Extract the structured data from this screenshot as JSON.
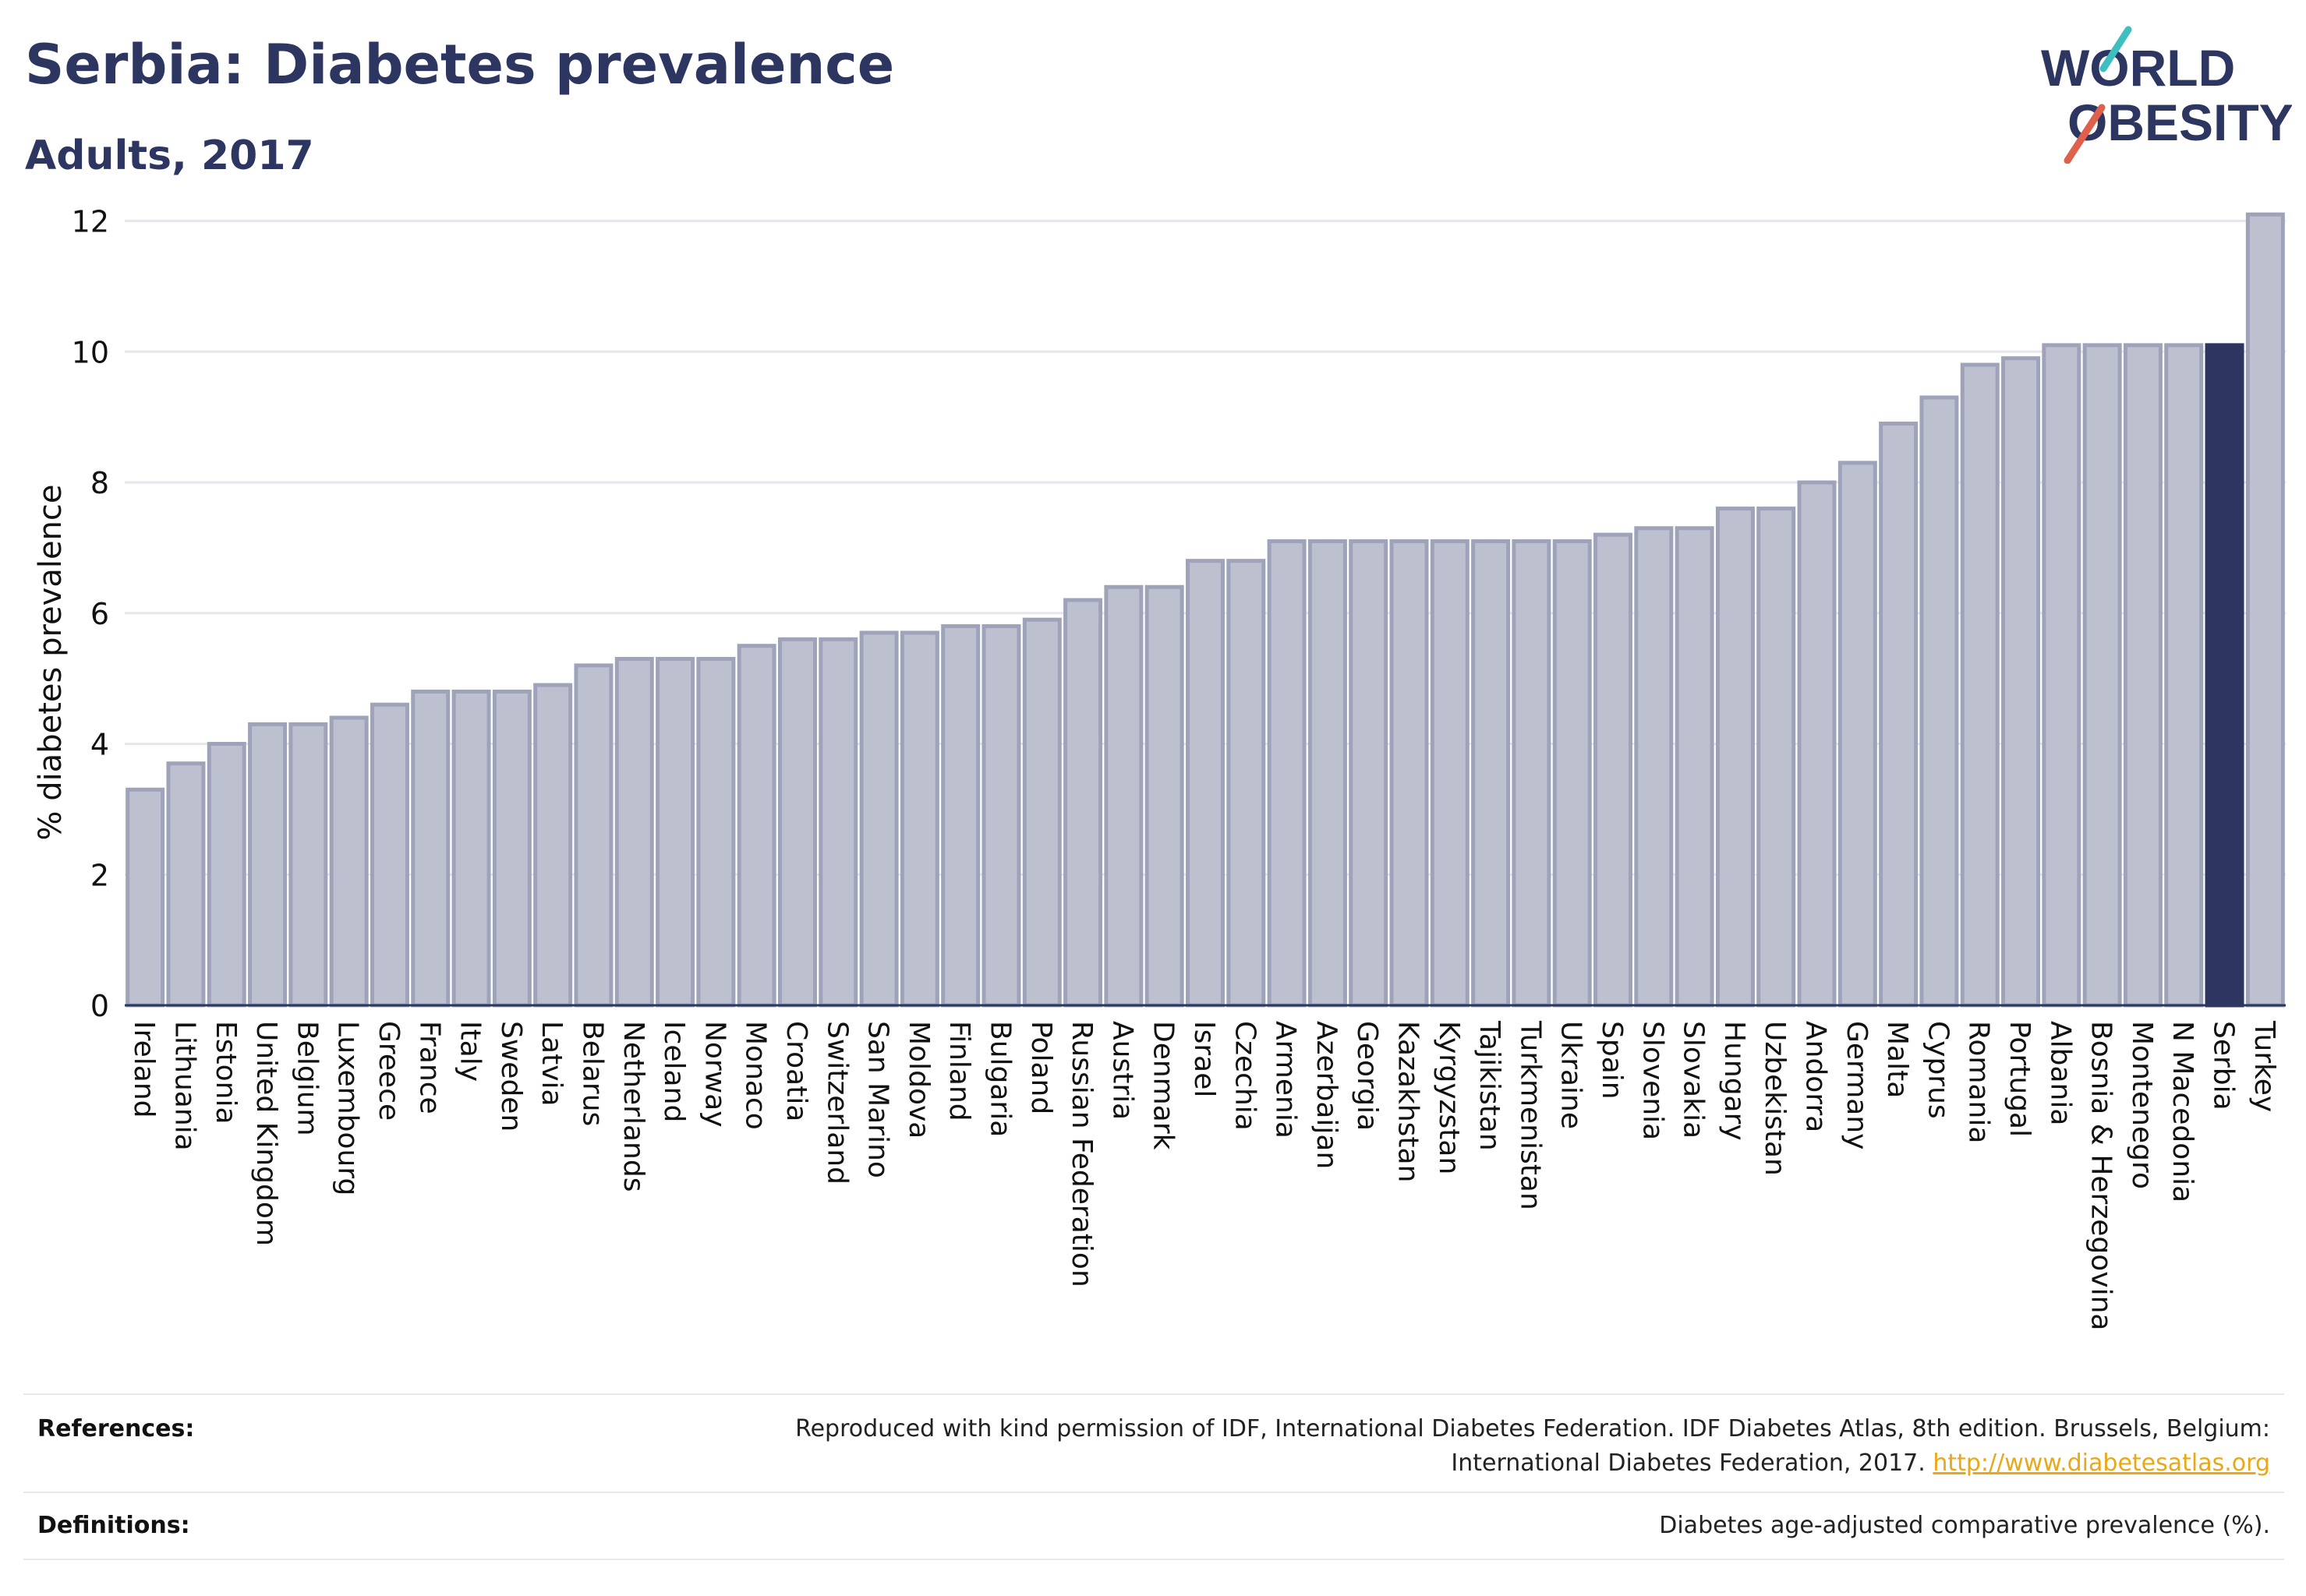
{
  "header": {
    "title": "Serbia: Diabetes prevalence",
    "subtitle": "Adults, 2017",
    "logo_line1": "WORLD",
    "logo_line2": "OBESITY"
  },
  "colors": {
    "title": "#2d3561",
    "bar": "#bcc0cf",
    "bar_border": "#9ea3ba",
    "highlight": "#2d3561",
    "grid": "#e6e6ec",
    "link": "#e8a818",
    "logo_teal": "#3dbfc0",
    "logo_coral": "#e0604e"
  },
  "chart_data": {
    "type": "bar",
    "ylabel": "% diabetes prevalence",
    "xlabel": "",
    "ylim": [
      0,
      12
    ],
    "yticks": [
      0,
      2,
      4,
      6,
      8,
      10,
      12
    ],
    "grid": true,
    "highlight": "Serbia",
    "categories": [
      "Ireland",
      "Lithuania",
      "Estonia",
      "United Kingdom",
      "Belgium",
      "Luxembourg",
      "Greece",
      "France",
      "Italy",
      "Sweden",
      "Latvia",
      "Belarus",
      "Netherlands",
      "Iceland",
      "Norway",
      "Monaco",
      "Croatia",
      "Switzerland",
      "San Marino",
      "Moldova",
      "Finland",
      "Bulgaria",
      "Poland",
      "Russian Federation",
      "Austria",
      "Denmark",
      "Israel",
      "Czechia",
      "Armenia",
      "Azerbaijan",
      "Georgia",
      "Kazakhstan",
      "Kyrgyzstan",
      "Tajikistan",
      "Turkmenistan",
      "Ukraine",
      "Spain",
      "Slovenia",
      "Slovakia",
      "Hungary",
      "Uzbekistan",
      "Andorra",
      "Germany",
      "Malta",
      "Cyprus",
      "Romania",
      "Portugal",
      "Albania",
      "Bosnia & Herzegovina",
      "Montenegro",
      "N Macedonia",
      "Serbia",
      "Turkey"
    ],
    "values": [
      3.3,
      3.7,
      4.0,
      4.3,
      4.3,
      4.4,
      4.6,
      4.8,
      4.8,
      4.8,
      4.9,
      5.2,
      5.3,
      5.3,
      5.3,
      5.5,
      5.6,
      5.6,
      5.7,
      5.7,
      5.8,
      5.8,
      5.9,
      6.2,
      6.4,
      6.4,
      6.8,
      6.8,
      7.1,
      7.1,
      7.1,
      7.1,
      7.1,
      7.1,
      7.1,
      7.1,
      7.2,
      7.3,
      7.3,
      7.6,
      7.6,
      8.0,
      8.3,
      8.9,
      9.3,
      9.8,
      9.9,
      10.1,
      10.1,
      10.1,
      10.1,
      10.1,
      12.1
    ]
  },
  "footer": {
    "references_label": "References:",
    "references_text_line1": "Reproduced with kind permission of IDF, International Diabetes Federation. IDF Diabetes Atlas, 8th edition. Brussels, Belgium:",
    "references_text_line2": "International Diabetes Federation, 2017.",
    "references_link": "http://www.diabetesatlas.org",
    "definitions_label": "Definitions:",
    "definitions_text": "Diabetes age-adjusted comparative prevalence (%)."
  }
}
